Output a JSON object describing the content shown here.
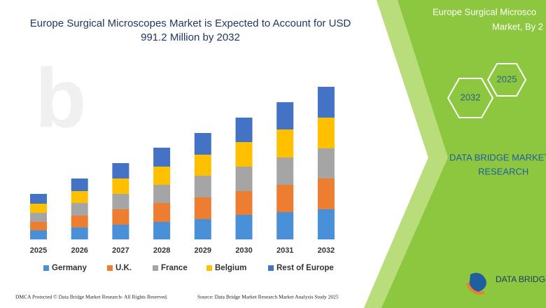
{
  "chart_data": {
    "type": "stacked_bar",
    "title": "Europe Surgical Microscopes Market is Expected to Account for USD",
    "title_line2": "991.2 Million by 2032",
    "categories": [
      "2025",
      "2026",
      "2027",
      "2028",
      "2029",
      "2030",
      "2031",
      "2032"
    ],
    "series": [
      {
        "name": "Germany",
        "color": "#4a90d9",
        "values": [
          13,
          17,
          21,
          25,
          29,
          35,
          39,
          43
        ]
      },
      {
        "name": "U.K.",
        "color": "#ed7d31",
        "values": [
          12,
          17,
          22,
          27,
          31,
          34,
          39,
          44
        ]
      },
      {
        "name": "France",
        "color": "#a5a5a5",
        "values": [
          13,
          18,
          22,
          26,
          31,
          35,
          39,
          43
        ]
      },
      {
        "name": "Belgium",
        "color": "#ffc000",
        "values": [
          13,
          17,
          22,
          26,
          30,
          35,
          40,
          44
        ]
      },
      {
        "name": "Rest of Europe",
        "color": "#4472c4",
        "values": [
          14,
          18,
          22,
          27,
          31,
          35,
          39,
          44
        ]
      }
    ]
  },
  "side_panel": {
    "title_line1": "Europe Surgical Microsco",
    "title_line2": "Market, By 2",
    "year_start": "2025",
    "year_end": "2032",
    "brand_line1": "DATA BRIDGE MARKET",
    "brand_line2": "RESEARCH",
    "logo": "DATA BRIDGE"
  },
  "footer": {
    "left": "DMCA Protected © Data Bridge Market Research- All Rights Reserved.",
    "right": "Source: Data Bridge Market Research Market Analysis Study 2025"
  }
}
